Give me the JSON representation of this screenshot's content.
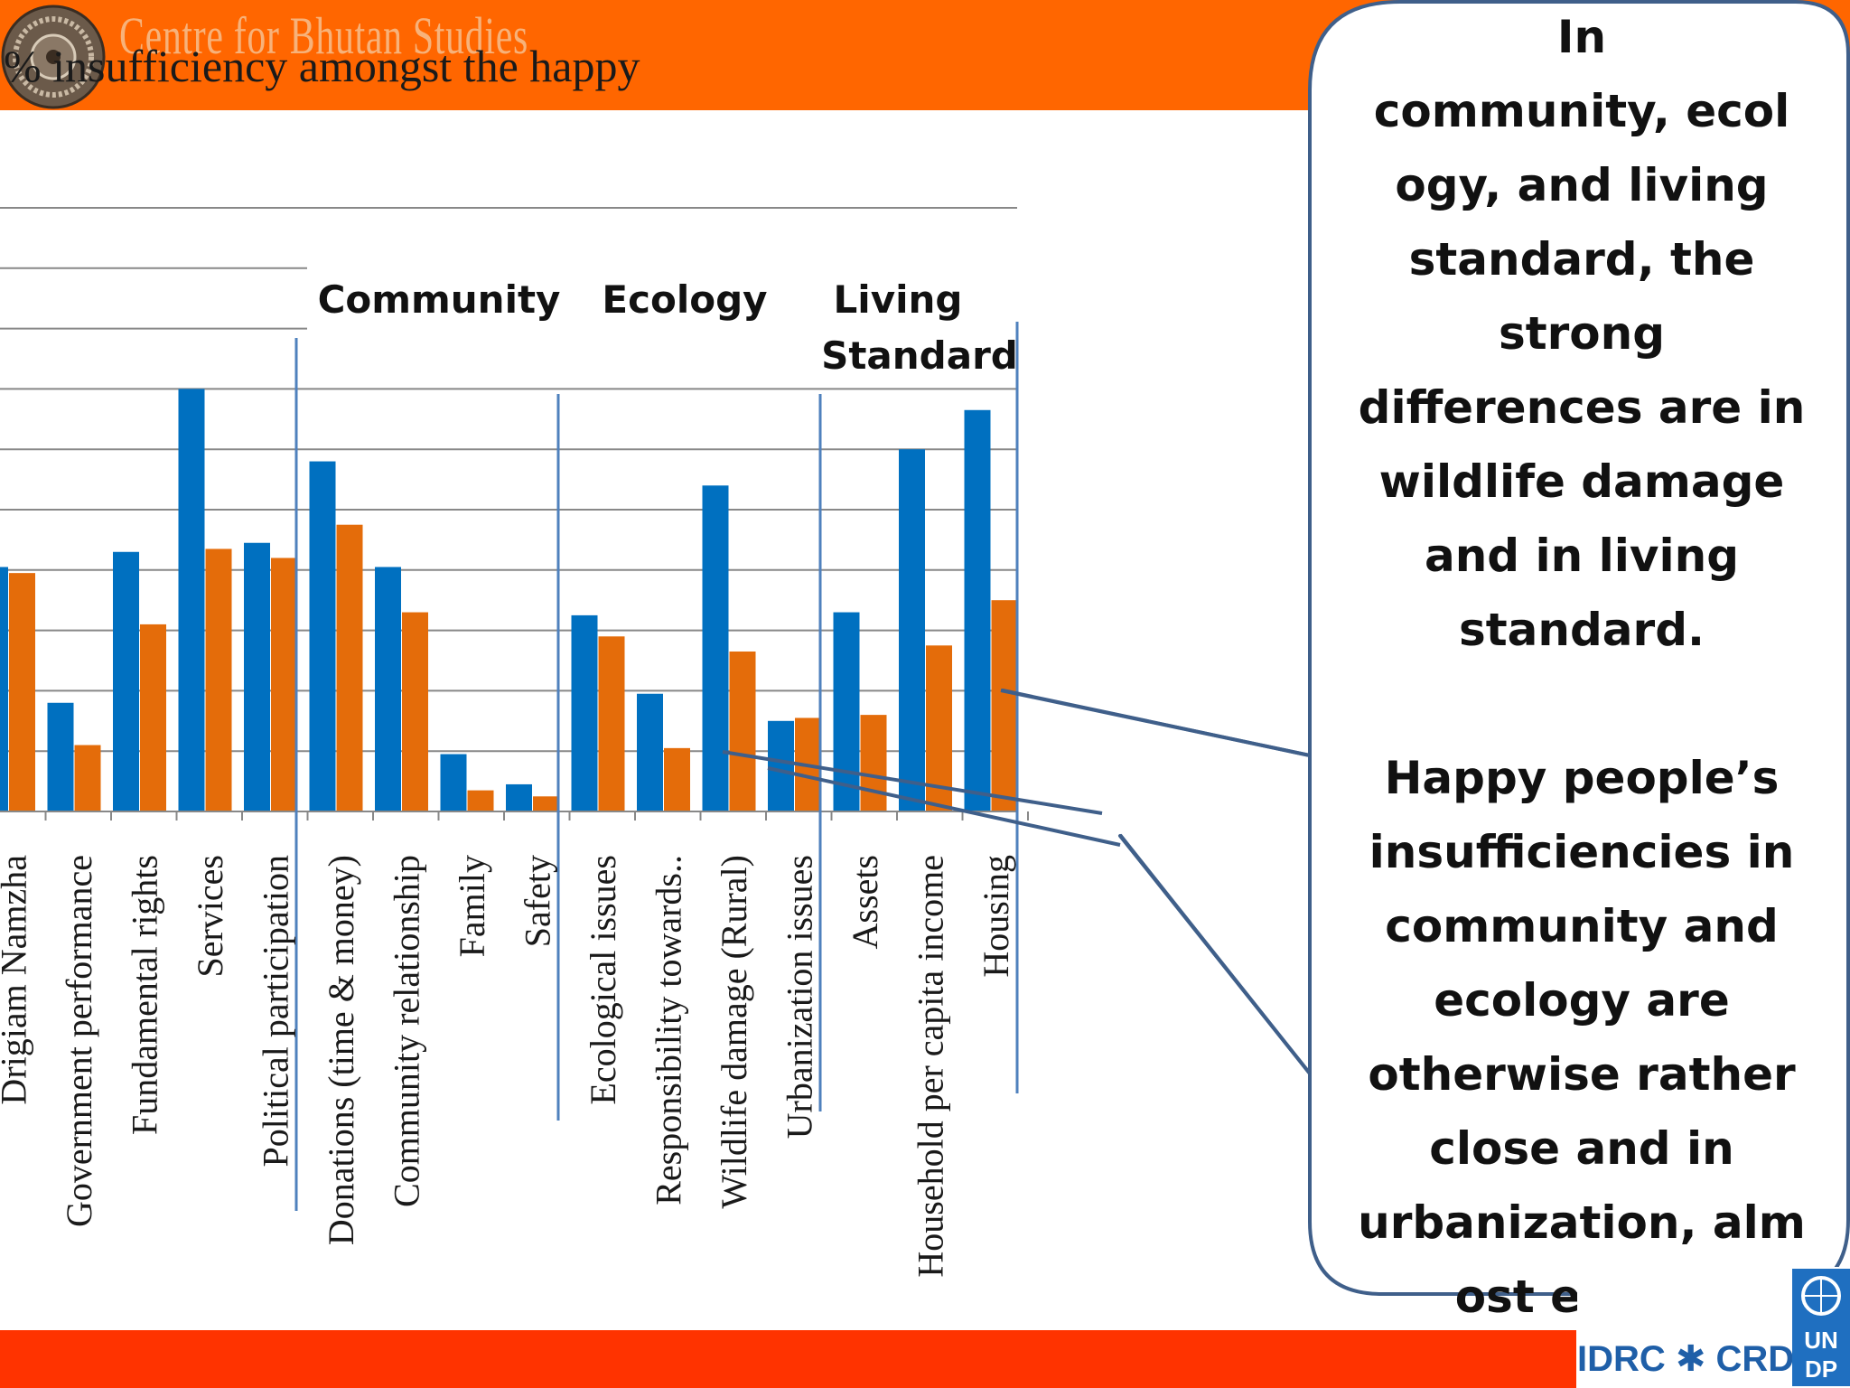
{
  "header": {
    "org_name": "Centre for Bhutan Studies"
  },
  "chart_title": "% insufficiency amongst the happy",
  "chart_data": {
    "type": "bar",
    "title": "% insufficiency amongst the happy",
    "categories": [
      "Drigiam Namzha",
      "Government performance",
      "Fundamental rights",
      "Services",
      "Political participation",
      "Donations (time & money)",
      "Community relationship",
      "Family",
      "Safety",
      "Ecological issues",
      "Responsibility towards..",
      "Wildlife damage (Rural)",
      "Urbanization issues",
      "Assets",
      "Household per capita income",
      "Housing"
    ],
    "series": [
      {
        "values": [
          40.5,
          18,
          43,
          70,
          44.5,
          58,
          40.5,
          9.5,
          4.5,
          32.5,
          19.5,
          54,
          15,
          33,
          60,
          66.5
        ]
      },
      {
        "values": [
          39.5,
          11,
          31,
          43.5,
          42,
          47.5,
          33,
          3.5,
          2.5,
          29,
          10.5,
          26.5,
          15.5,
          16,
          27.5,
          35
        ]
      }
    ],
    "series_colors": [
      "#0070c0",
      "#e46c0a"
    ],
    "group_labels": [
      "Community",
      "Ecology",
      "Living",
      "Standard"
    ],
    "ylim": [
      0,
      100
    ],
    "grid": true
  },
  "callout": {
    "paragraph1": [
      "In",
      "community, ecol",
      "ogy, and living",
      "standard,  the",
      "strong",
      "differences are in",
      "wildlife damage",
      "and in living",
      "standard."
    ],
    "paragraph2": [
      "Happy people’s",
      "insufficiencies in",
      "community and",
      "ecology are",
      "otherwise rather",
      "close and in",
      "urbanization, alm",
      "ost equal."
    ]
  },
  "footer": {
    "partner_text": "IDRC ✱ CRDI",
    "undp_text": "UN DP"
  },
  "colors": {
    "header": "#ff6600",
    "footer": "#ff3300",
    "axis_line": "#4f81bd",
    "grid": "#888888"
  }
}
